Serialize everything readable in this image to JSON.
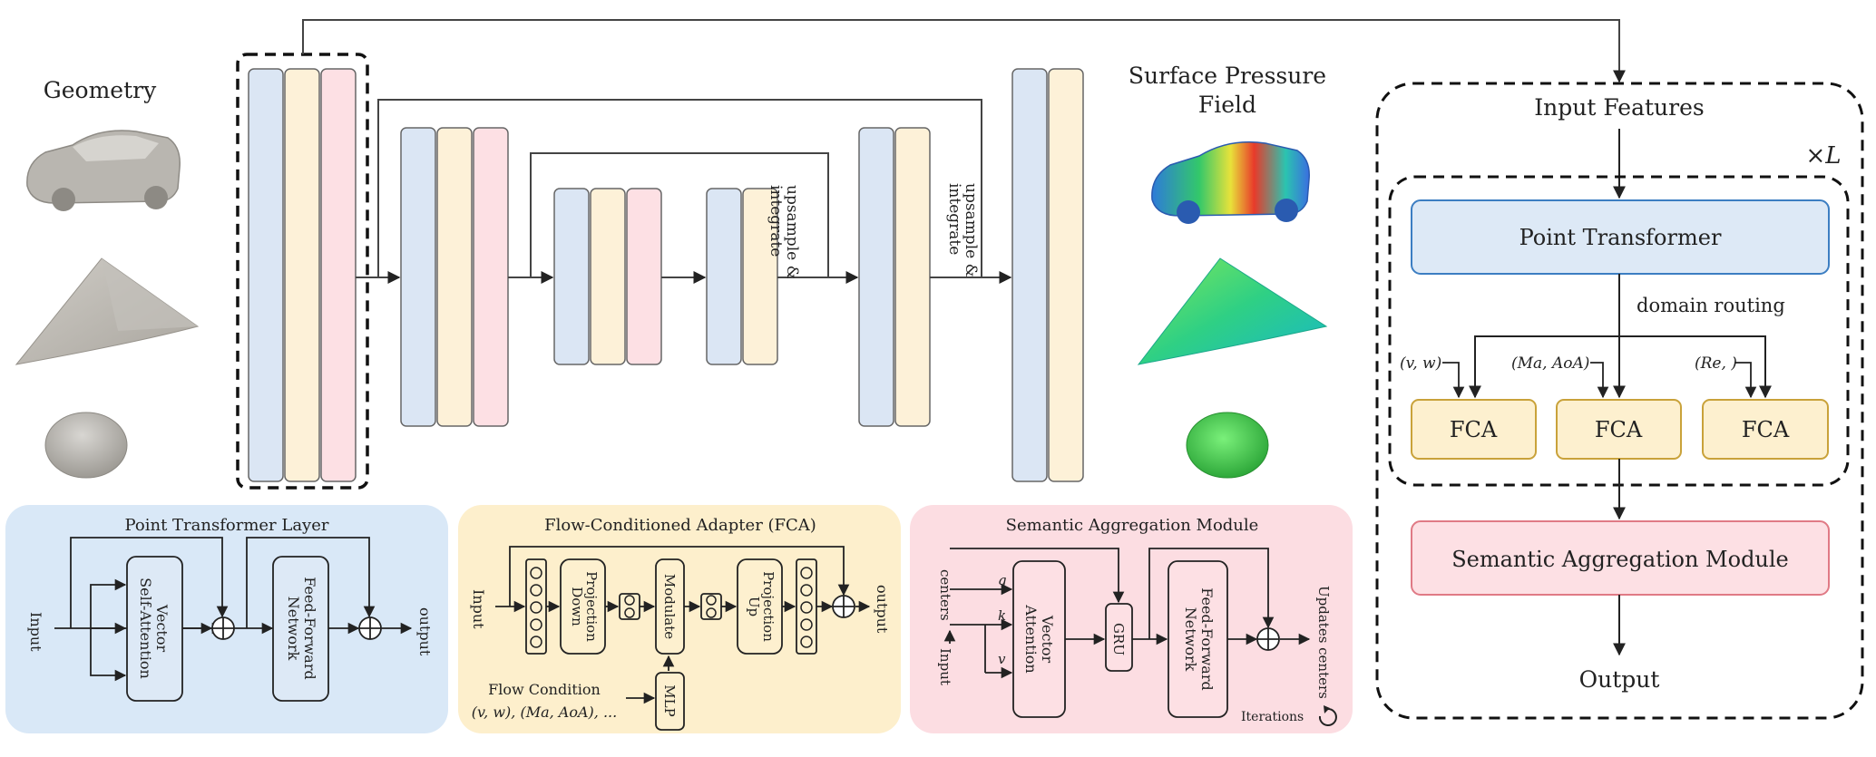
{
  "titles": {
    "geometry": "Geometry",
    "surface_line1": "Surface Pressure",
    "surface_line2": "Field"
  },
  "unet": {
    "upsample_1": "upsample &",
    "integrate_1": "integrate",
    "upsample_2": "upsample &",
    "integrate_2": "integrate"
  },
  "right_panel": {
    "input_features": "Input Features",
    "repeat_label": "×L",
    "point_transformer": "Point Transformer",
    "domain_routing": "domain routing",
    "cond_1": "(v, w)",
    "cond_2": "(Ma, AoA)",
    "cond_3": "(Re, )",
    "fca_1": "FCA",
    "fca_2": "FCA",
    "fca_3": "FCA",
    "sam": "Semantic Aggregation Module",
    "output": "Output"
  },
  "ptl_panel": {
    "title": "Point Transformer Layer",
    "input": "Input",
    "attn_line1": "Vector",
    "attn_line2": "Self-Attention",
    "ffn_line1": "Feed-Forward",
    "ffn_line2": "Network",
    "output": "output"
  },
  "fca_panel": {
    "title": "Flow-Conditioned Adapter (FCA)",
    "input": "Input",
    "proj_down_line1": "Projection",
    "proj_down_line2": "Down",
    "modulate": "Modulate",
    "proj_up_line1": "Projection",
    "proj_up_line2": "Up",
    "mlp": "MLP",
    "output": "output",
    "flow_cond_line1": "Flow Condition",
    "flow_cond_line2": "(v, w), (Ma, AoA), ..."
  },
  "sam_panel": {
    "title": "Semantic Aggregation Module",
    "centers": "centers",
    "input": "Input",
    "q": "q",
    "k": "k",
    "v": "v",
    "attn_line1": "Vector",
    "attn_line2": "Attention",
    "gru": "GRU",
    "ffn_line1": "Feed-Forward",
    "ffn_line2": "Network",
    "updates": "Updates centers",
    "iterations": "Iterations"
  },
  "colors": {
    "blue_fill": "#dbe6f4",
    "yellow_fill": "#fdf1d8",
    "pink_fill": "#fde0e4",
    "panel_blue": "#d9e8f7",
    "panel_yellow": "#fdefcc",
    "panel_pink": "#fcdde2",
    "pt_box_fill": "#dde9f6",
    "pt_box_stroke": "#3c7ec2",
    "fca_fill": "#fdf0cf",
    "fca_stroke": "#c9a23a",
    "sam_fill": "#fde0e4",
    "sam_stroke": "#e07a85",
    "shape_gray": "#b4b1ab"
  }
}
